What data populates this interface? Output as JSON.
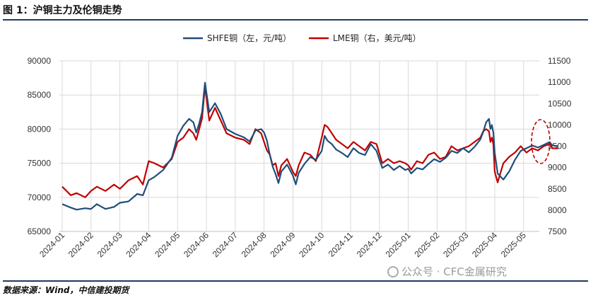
{
  "header": {
    "title": "图 1：沪铜主力及伦铜走势"
  },
  "footer": {
    "source": "数据来源：Wind，中信建投期货",
    "watermark": "公众号 · CFC金属研究"
  },
  "colors": {
    "shfe": "#1f4e79",
    "lme": "#c00000",
    "grid": "#d9d9d9",
    "highlight": "#c00000",
    "rule": "#1f3b63"
  },
  "chart_data": {
    "type": "line",
    "title": "",
    "legend": [
      "SHFE铜（左，元/吨）",
      "LME铜（右，美元/吨）"
    ],
    "legend_position": "top-center",
    "y_left": {
      "min": 65000,
      "max": 90000,
      "ticks": [
        90000,
        85000,
        80000,
        75000,
        70000,
        65000
      ]
    },
    "y_right": {
      "min": 7500,
      "max": 11500,
      "ticks": [
        11500,
        11000,
        10500,
        10000,
        9500,
        9000,
        8500,
        8000,
        7500
      ]
    },
    "x_tick_labels": [
      "2024-01",
      "2024-02",
      "2024-03",
      "2024-04",
      "2024-05",
      "2024-06",
      "2024-07",
      "2024-08",
      "2024-09",
      "2024-10",
      "2024-11",
      "2024-12",
      "2025-01",
      "2025-02",
      "2025-03",
      "2025-04",
      "2025-05"
    ],
    "series": [
      {
        "name": "SHFE铜（左，元/吨）",
        "axis": "left",
        "t": [
          0,
          0.3,
          0.5,
          0.8,
          1.0,
          1.2,
          1.5,
          1.8,
          2.0,
          2.3,
          2.6,
          2.8,
          3.0,
          3.2,
          3.5,
          3.8,
          4.0,
          4.2,
          4.4,
          4.55,
          4.65,
          4.75,
          4.85,
          4.95,
          5.1,
          5.3,
          5.5,
          5.7,
          6.0,
          6.3,
          6.5,
          6.7,
          6.9,
          7.0,
          7.1,
          7.2,
          7.3,
          7.4,
          7.5,
          7.6,
          7.8,
          8.0,
          8.1,
          8.2,
          8.4,
          8.6,
          8.8,
          9.0,
          9.1,
          9.2,
          9.35,
          9.5,
          9.7,
          9.9,
          10.1,
          10.3,
          10.5,
          10.7,
          10.9,
          11.1,
          11.3,
          11.5,
          11.7,
          11.9,
          12.0,
          12.1,
          12.3,
          12.5,
          12.7,
          12.9,
          13.1,
          13.3,
          13.5,
          13.7,
          13.9,
          14.1,
          14.3,
          14.5,
          14.6,
          14.7,
          14.8,
          14.85,
          14.9,
          14.95,
          15.0,
          15.1,
          15.3,
          15.5,
          15.7,
          15.9,
          16.1,
          16.3,
          16.5,
          16.7,
          16.9,
          17.0,
          17.2
        ],
        "values": [
          69000,
          68500,
          68200,
          68400,
          68300,
          69000,
          68300,
          68600,
          69200,
          69400,
          70500,
          70300,
          72500,
          73000,
          74000,
          75800,
          79000,
          80500,
          81500,
          81000,
          79500,
          80800,
          82500,
          86800,
          82500,
          83800,
          82200,
          80000,
          79300,
          78800,
          78200,
          79800,
          80000,
          79500,
          78300,
          76200,
          74500,
          73400,
          72100,
          73800,
          74800,
          73200,
          71900,
          73600,
          74900,
          75900,
          75500,
          76800,
          79000,
          78300,
          77800,
          77000,
          76500,
          75900,
          77200,
          76500,
          76200,
          77800,
          76800,
          74300,
          74800,
          74000,
          74600,
          74000,
          74200,
          73500,
          74300,
          74100,
          74900,
          75600,
          75200,
          75800,
          76800,
          76500,
          77200,
          76600,
          77400,
          78500,
          79600,
          81000,
          81500,
          80000,
          80600,
          79500,
          76500,
          73500,
          72600,
          73800,
          75500,
          76800,
          77200,
          77600,
          77300,
          77700,
          78100,
          77600,
          77500
        ]
      },
      {
        "name": "LME铜（右，美元/吨）",
        "axis": "right",
        "t": [
          0,
          0.3,
          0.5,
          0.8,
          1.0,
          1.2,
          1.5,
          1.8,
          2.0,
          2.3,
          2.6,
          2.8,
          3.0,
          3.2,
          3.5,
          3.8,
          4.0,
          4.2,
          4.4,
          4.55,
          4.65,
          4.75,
          4.85,
          4.95,
          5.1,
          5.3,
          5.5,
          5.7,
          6.0,
          6.3,
          6.5,
          6.7,
          6.9,
          7.0,
          7.1,
          7.2,
          7.3,
          7.4,
          7.5,
          7.6,
          7.8,
          8.0,
          8.1,
          8.2,
          8.4,
          8.6,
          8.8,
          9.0,
          9.1,
          9.2,
          9.35,
          9.5,
          9.7,
          9.9,
          10.1,
          10.3,
          10.5,
          10.7,
          10.9,
          11.1,
          11.3,
          11.5,
          11.7,
          11.9,
          12.0,
          12.1,
          12.3,
          12.5,
          12.7,
          12.9,
          13.1,
          13.3,
          13.5,
          13.7,
          13.9,
          14.1,
          14.3,
          14.5,
          14.6,
          14.7,
          14.8,
          14.85,
          14.9,
          14.95,
          15.0,
          15.1,
          15.3,
          15.5,
          15.7,
          15.9,
          16.1,
          16.3,
          16.5,
          16.7,
          16.9,
          17.0,
          17.2
        ],
        "values": [
          8550,
          8350,
          8400,
          8300,
          8450,
          8550,
          8450,
          8600,
          8500,
          8700,
          8800,
          8600,
          9150,
          9100,
          9000,
          9200,
          9600,
          9700,
          9900,
          9800,
          9650,
          9900,
          10150,
          10900,
          10100,
          10400,
          10100,
          9800,
          9700,
          9650,
          9550,
          9900,
          9800,
          9600,
          9400,
          9300,
          9050,
          9100,
          8800,
          9050,
          9200,
          8900,
          8800,
          9050,
          9350,
          9300,
          9150,
          9700,
          10000,
          9950,
          9800,
          9650,
          9550,
          9450,
          9600,
          9500,
          9400,
          9600,
          9550,
          9100,
          9200,
          9100,
          9150,
          9100,
          9050,
          8950,
          9150,
          9100,
          9300,
          9350,
          9200,
          9250,
          9500,
          9400,
          9450,
          9500,
          9600,
          9700,
          9850,
          9900,
          9850,
          9600,
          9700,
          9550,
          8900,
          8650,
          9100,
          9250,
          9350,
          9500,
          9350,
          9450,
          9400,
          9500,
          9550,
          9450,
          9450
        ]
      }
    ],
    "annotation": "red dashed ellipse highlighting the latest data"
  }
}
